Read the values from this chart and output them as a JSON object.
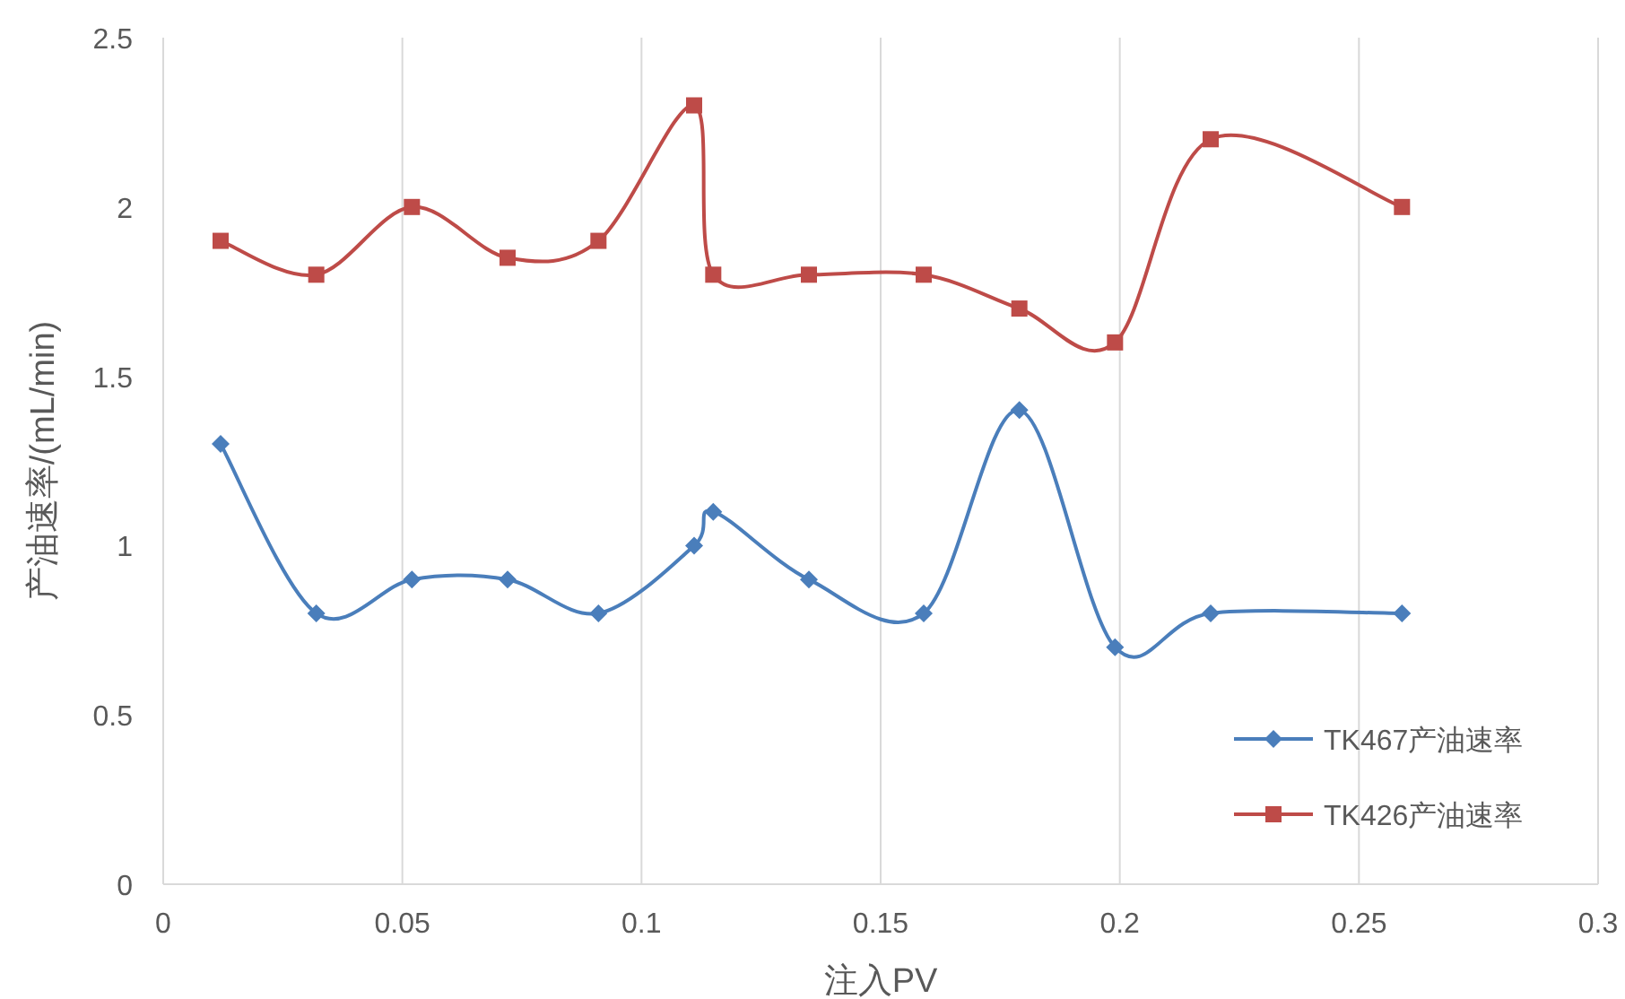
{
  "chart_data": {
    "type": "line",
    "xlabel": "注入PV",
    "ylabel": "产油速率/(mL/min)",
    "xlim": [
      0,
      0.3
    ],
    "xticks": [
      0,
      0.05,
      0.1,
      0.15,
      0.2,
      0.25,
      0.3
    ],
    "ylim": [
      0,
      2.5
    ],
    "yticks": [
      0,
      0.5,
      1,
      1.5,
      2,
      2.5
    ],
    "grid": "x",
    "legend": "bottom right",
    "x": [
      0.012,
      0.032,
      0.052,
      0.072,
      0.091,
      0.111,
      0.115,
      0.135,
      0.159,
      0.179,
      0.199,
      0.219,
      0.259
    ],
    "series": [
      {
        "name": "TK467产油速率",
        "color": "#4a7ebb",
        "marker": "diamond",
        "values": [
          1.3,
          0.8,
          0.9,
          0.9,
          0.8,
          1.0,
          1.1,
          0.9,
          0.8,
          1.4,
          0.7,
          0.8,
          0.8
        ]
      },
      {
        "name": "TK426产油速率",
        "color": "#be4b48",
        "marker": "square",
        "values": [
          1.9,
          1.8,
          2.0,
          1.85,
          1.9,
          2.3,
          1.8,
          1.8,
          1.8,
          1.7,
          1.6,
          2.2,
          2.0
        ]
      }
    ]
  }
}
